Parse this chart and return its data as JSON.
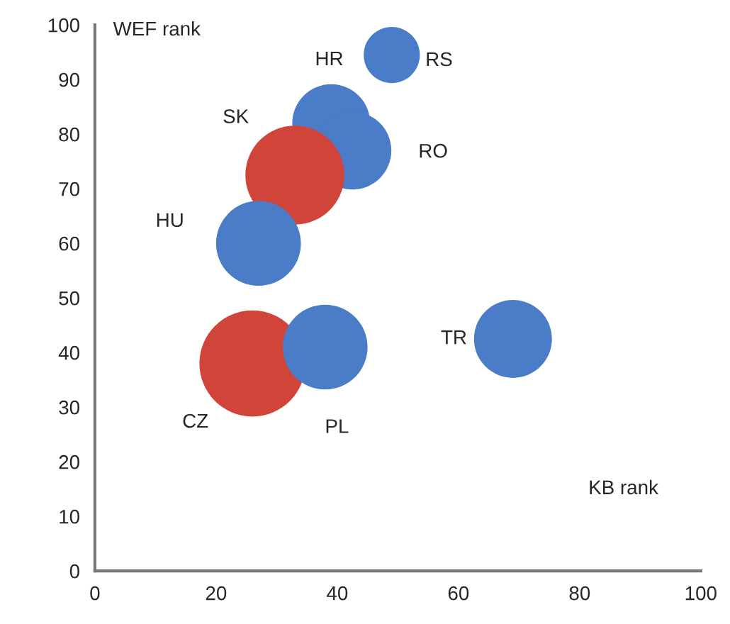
{
  "chart_data": {
    "type": "bubble",
    "xlabel": "KB rank",
    "ylabel": "WEF rank",
    "x": [
      49,
      39,
      42.5,
      33,
      27,
      26,
      38,
      69
    ],
    "values": [
      94.5,
      82,
      77,
      72.5,
      60,
      38,
      41,
      42.5
    ],
    "sizes": [
      0.28,
      0.54,
      0.54,
      0.87,
      0.64,
      1,
      0.64,
      0.54
    ],
    "colors": [
      "#4a7cc7",
      "#4a7cc7",
      "#4a7cc7",
      "#d0443a",
      "#4a7cc7",
      "#d0443a",
      "#4a7cc7",
      "#4a7cc7"
    ],
    "annotations": [
      "RS",
      "HR",
      "RO",
      "SK",
      "HU",
      "CZ",
      "PL",
      "TR"
    ],
    "xlim": [
      0,
      100
    ],
    "ylim": [
      0,
      100
    ],
    "xticks": [
      0,
      20,
      40,
      60,
      80,
      100
    ],
    "yticks": [
      0,
      10,
      20,
      30,
      40,
      50,
      60,
      70,
      80,
      90,
      100
    ],
    "grid": false,
    "legend": false
  }
}
